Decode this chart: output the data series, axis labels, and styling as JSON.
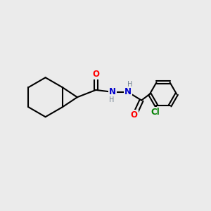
{
  "background_color": "#ebebeb",
  "bond_color": "#000000",
  "bond_width": 1.5,
  "atom_colors": {
    "O": "#ff0000",
    "N": "#0000cd",
    "Cl": "#008000",
    "C": "#000000",
    "H": "#708090"
  },
  "font_size_atoms": 8.5,
  "font_size_h": 7.0,
  "figsize": [
    3.0,
    3.0
  ],
  "dpi": 100
}
